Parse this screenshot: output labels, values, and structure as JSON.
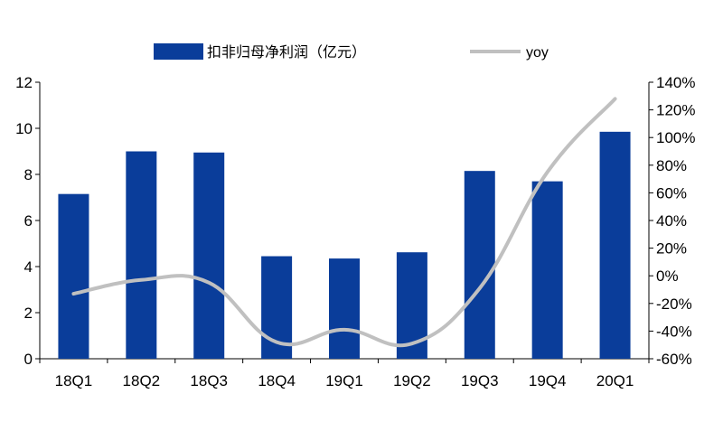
{
  "chart_data": {
    "type": "bar+line",
    "categories": [
      "18Q1",
      "18Q2",
      "18Q3",
      "18Q4",
      "19Q1",
      "19Q2",
      "19Q3",
      "19Q4",
      "20Q1"
    ],
    "series": [
      {
        "name": "扣非归母净利润（亿元）",
        "type": "bar",
        "axis": "left",
        "color": "#0a3d9a",
        "values": [
          7.15,
          9.0,
          8.95,
          4.45,
          4.35,
          4.62,
          8.15,
          7.7,
          9.85
        ]
      },
      {
        "name": "yoy",
        "type": "line",
        "axis": "right",
        "color": "#c0c0c0",
        "unit": "%",
        "values": [
          -13,
          -3,
          -5,
          -48,
          -39,
          -49,
          -9,
          75,
          128
        ]
      }
    ],
    "y_left": {
      "ylim": [
        0,
        12
      ],
      "ticks": [
        "0",
        "2",
        "4",
        "6",
        "8",
        "10",
        "12"
      ]
    },
    "y_right": {
      "ylim": [
        -60,
        140
      ],
      "ticks": [
        "-60%",
        "-40%",
        "-20%",
        "0%",
        "20%",
        "40%",
        "60%",
        "80%",
        "100%",
        "120%",
        "140%"
      ]
    },
    "grid": false,
    "legend": "top"
  }
}
